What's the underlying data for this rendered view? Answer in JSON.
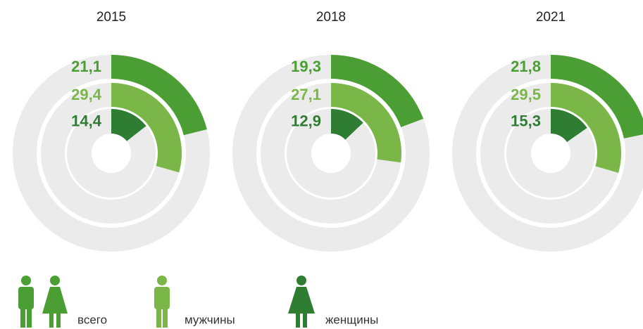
{
  "legend": [
    {
      "name": "всего",
      "color": "#4a9e33"
    },
    {
      "name": "мужчины",
      "color": "#7ab648"
    },
    {
      "name": "женщины",
      "color": "#2e7d32"
    }
  ],
  "chart_data": [
    {
      "type": "radial_bar",
      "title": "2015",
      "values": [
        21.1,
        29.4,
        14.4
      ],
      "value_labels": [
        "21,1",
        "29,4",
        "14,4"
      ],
      "ylim": [
        0,
        100
      ]
    },
    {
      "type": "radial_bar",
      "title": "2018",
      "values": [
        19.3,
        27.1,
        12.9
      ],
      "value_labels": [
        "19,3",
        "27,1",
        "12,9"
      ],
      "ylim": [
        0,
        100
      ]
    },
    {
      "type": "radial_bar",
      "title": "2021",
      "values": [
        21.8,
        29.5,
        15.3
      ],
      "value_labels": [
        "21,8",
        "29,5",
        "15,3"
      ],
      "ylim": [
        0,
        100
      ]
    }
  ]
}
